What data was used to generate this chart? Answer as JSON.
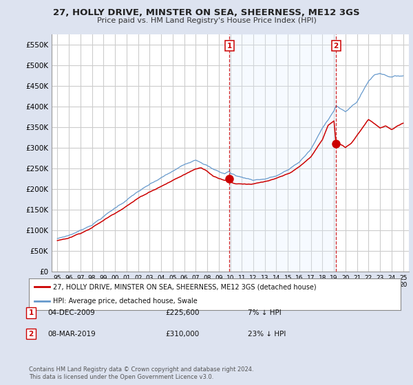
{
  "title": "27, HOLLY DRIVE, MINSTER ON SEA, SHEERNESS, ME12 3GS",
  "subtitle": "Price paid vs. HM Land Registry's House Price Index (HPI)",
  "ylabel_ticks": [
    "£0",
    "£50K",
    "£100K",
    "£150K",
    "£200K",
    "£250K",
    "£300K",
    "£350K",
    "£400K",
    "£450K",
    "£500K",
    "£550K"
  ],
  "ytick_values": [
    0,
    50000,
    100000,
    150000,
    200000,
    250000,
    300000,
    350000,
    400000,
    450000,
    500000,
    550000
  ],
  "ylim": [
    0,
    575000
  ],
  "fig_bg_color": "#dde3f0",
  "plot_bg_color": "#ffffff",
  "grid_color": "#cccccc",
  "shade_color": "#ddeeff",
  "legend_label_red": "27, HOLLY DRIVE, MINSTER ON SEA, SHEERNESS, ME12 3GS (detached house)",
  "legend_label_blue": "HPI: Average price, detached house, Swale",
  "annotation1_date": "04-DEC-2009",
  "annotation1_price": "£225,600",
  "annotation1_hpi": "7% ↓ HPI",
  "annotation2_date": "08-MAR-2019",
  "annotation2_price": "£310,000",
  "annotation2_hpi": "23% ↓ HPI",
  "copyright_text": "Contains HM Land Registry data © Crown copyright and database right 2024.\nThis data is licensed under the Open Government Licence v3.0.",
  "red_color": "#cc0000",
  "blue_color": "#6699cc",
  "sale1_x": 2009.92,
  "sale1_y": 225600,
  "sale2_x": 2019.18,
  "sale2_y": 310000,
  "vline1_x": 2009.92,
  "vline2_x": 2019.18,
  "xlim_left": 1994.5,
  "xlim_right": 2025.5
}
